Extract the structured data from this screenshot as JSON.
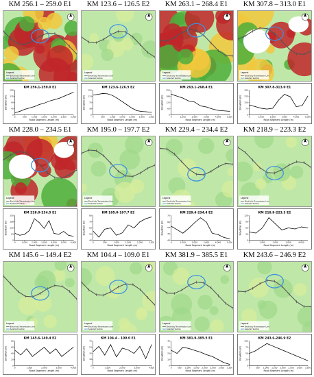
{
  "colors": {
    "route": "#555555",
    "route_ticks": "#555555",
    "study_area": "#3d8fe0",
    "low_elev": "#bfe8a8",
    "mid_elev": "#f1c83c",
    "high_elev": "#c0262a",
    "peak": "#ffffff",
    "profile_line": "#000000"
  },
  "map_common": {
    "compass": "north-arrow-icon",
    "legend_title": "Legend",
    "legend_items": [
      "Electricity Transmission Line",
      "Selected Section"
    ]
  },
  "panels": [
    {
      "title": "KM 256.1 – 259.0 E1",
      "map_style": "high",
      "chart_data": {
        "type": "line",
        "title": "KM 256.1-259.0 E1",
        "xlabel": "Road Segment Length (m)",
        "ylabel": "Elevation (m)",
        "xlim": [
          0,
          3000
        ],
        "ylim": [
          0,
          180
        ],
        "x_ticks": [
          0,
          500,
          1000,
          1500,
          2000,
          2500,
          3000
        ],
        "x": [
          0,
          250,
          500,
          750,
          1000,
          1250,
          1500,
          1750,
          2000,
          2250,
          2500,
          2750,
          3000
        ],
        "y": [
          15,
          25,
          40,
          50,
          60,
          75,
          85,
          100,
          110,
          120,
          135,
          150,
          165
        ]
      }
    },
    {
      "title": "KM 123.6 – 126.5 E2",
      "map_style": "light",
      "chart_data": {
        "type": "line",
        "title": "KM 123.6-126.5 E2",
        "xlabel": "Road Segment Length (m)",
        "ylabel": "Elevation (m)",
        "xlim": [
          0,
          3000
        ],
        "ylim": [
          0,
          150
        ],
        "x_ticks": [
          0,
          500,
          1000,
          1500,
          2000,
          2500,
          3000
        ],
        "x": [
          0,
          250,
          500,
          750,
          1000,
          1250,
          1500,
          1750,
          2000,
          2250,
          2500,
          2750,
          3000
        ],
        "y": [
          120,
          125,
          130,
          128,
          118,
          100,
          80,
          60,
          40,
          25,
          20,
          18,
          15
        ]
      }
    },
    {
      "title": "KM 263.1 – 268.4 E1",
      "map_style": "high",
      "chart_data": {
        "type": "line",
        "title": "KM 263.1-268.4 E1",
        "xlabel": "Road Segment Length (m)",
        "ylabel": "Elevation (m)",
        "xlim": [
          0,
          5000
        ],
        "ylim": [
          0,
          250
        ],
        "x_ticks": [
          0,
          1000,
          2000,
          3000,
          4000,
          5000
        ],
        "x": [
          0,
          500,
          1000,
          1500,
          2000,
          2500,
          3000,
          3500,
          4000,
          4500,
          5000
        ],
        "y": [
          210,
          190,
          170,
          140,
          130,
          90,
          80,
          60,
          45,
          40,
          35
        ]
      }
    },
    {
      "title": "KM 307.8 – 313.0 E1",
      "map_style": "peak",
      "chart_data": {
        "type": "line",
        "title": "KM 307.8-313.0 E1",
        "xlabel": "Road Segment Length (m)",
        "ylabel": "Elevation (m)",
        "xlim": [
          0,
          5000
        ],
        "ylim": [
          0,
          300
        ],
        "x_ticks": [
          0,
          1000,
          2000,
          3000,
          4000,
          5000
        ],
        "x": [
          0,
          500,
          1000,
          1500,
          2000,
          2500,
          3000,
          3500,
          4000,
          4500,
          5000
        ],
        "y": [
          120,
          100,
          80,
          70,
          80,
          180,
          250,
          220,
          100,
          110,
          230
        ]
      }
    },
    {
      "title": "KM 228.0 – 234.5 E1",
      "map_style": "peak",
      "chart_data": {
        "type": "line",
        "title": "KM 228.0-234.5 E1",
        "xlabel": "Road Segment Length (m)",
        "ylabel": "Elevation (m)",
        "xlim": [
          0,
          6000
        ],
        "ylim": [
          0,
          250
        ],
        "x_ticks": [
          0,
          1000,
          2000,
          3000,
          4000,
          5000,
          6000
        ],
        "x": [
          0,
          500,
          1000,
          1500,
          2000,
          2500,
          3000,
          3500,
          4000,
          4500,
          5000,
          5500,
          6000
        ],
        "y": [
          70,
          50,
          60,
          100,
          220,
          180,
          120,
          200,
          70,
          60,
          90,
          50,
          40
        ]
      }
    },
    {
      "title": "KM 195.0 – 197.7 E2",
      "map_style": "light",
      "chart_data": {
        "type": "line",
        "title": "KM 195.0-197.7 E2",
        "xlabel": "Road Segment Length (m)",
        "ylabel": "Elevation (m)",
        "xlim": [
          0,
          2500
        ],
        "ylim": [
          40,
          80
        ],
        "x_ticks": [
          0,
          500,
          1000,
          1500,
          2000,
          2500
        ],
        "x": [
          0,
          250,
          500,
          750,
          1000,
          1250,
          1500,
          1750,
          2000,
          2250,
          2500
        ],
        "y": [
          55,
          45,
          58,
          60,
          48,
          52,
          65,
          60,
          70,
          75,
          78
        ]
      }
    },
    {
      "title": "KM 229.4 – 234.4 E2",
      "map_style": "light",
      "chart_data": {
        "type": "line",
        "title": "KM 229.4-234.4 E2",
        "xlabel": "Road Segment Length (m)",
        "ylabel": "Elevation (m)",
        "xlim": [
          0,
          5000
        ],
        "ylim": [
          40,
          75
        ],
        "x_ticks": [
          0,
          1000,
          2000,
          3000,
          4000,
          5000
        ],
        "x": [
          0,
          500,
          1000,
          1500,
          2000,
          2500,
          3000,
          3500,
          4000,
          4500,
          5000
        ],
        "y": [
          60,
          55,
          50,
          57,
          65,
          72,
          66,
          50,
          48,
          44,
          42
        ]
      }
    },
    {
      "title": "KM 218.9 – 223.3 E2",
      "map_style": "light",
      "chart_data": {
        "type": "line",
        "title": "KM 218.9-223.3 E2",
        "xlabel": "Road Segment Length (m)",
        "ylabel": "Elevation (m)",
        "xlim": [
          0,
          4500
        ],
        "ylim": [
          0,
          120
        ],
        "x_ticks": [
          0,
          1000,
          2000,
          3000,
          4000
        ],
        "x": [
          0,
          500,
          1000,
          1500,
          2000,
          2500,
          3000,
          3500,
          4000,
          4500
        ],
        "y": [
          40,
          35,
          60,
          110,
          80,
          50,
          60,
          55,
          65,
          60
        ]
      }
    },
    {
      "title": "KM 145.6 – 149.4 E2",
      "map_style": "light",
      "chart_data": {
        "type": "line",
        "title": "KM 145.6-149.4 E2",
        "xlabel": "Road Segment Length (m)",
        "ylabel": "Elevation (m)",
        "xlim": [
          0,
          4000
        ],
        "ylim": [
          0,
          80
        ],
        "x_ticks": [
          0,
          1000,
          2000,
          3000,
          4000
        ],
        "x": [
          0,
          400,
          800,
          1200,
          1600,
          2000,
          2400,
          2800,
          3200,
          3600,
          4000
        ],
        "y": [
          50,
          35,
          55,
          30,
          45,
          60,
          40,
          55,
          30,
          45,
          60
        ]
      }
    },
    {
      "title": "KM 104.4 – 109.0 E1",
      "map_style": "light",
      "chart_data": {
        "type": "line",
        "title": "KM 104.4 - 109.0 E1",
        "xlabel": "Road Segment Length (m)",
        "ylabel": "Elevation (m)",
        "xlim": [
          0,
          4000
        ],
        "ylim": [
          0,
          70
        ],
        "x_ticks": [
          0,
          1000,
          2000,
          3000,
          4000
        ],
        "x": [
          0,
          400,
          800,
          1200,
          1600,
          2000,
          2400,
          2800,
          3200,
          3600,
          4000
        ],
        "y": [
          40,
          55,
          30,
          60,
          25,
          50,
          45,
          35,
          55,
          20,
          60
        ]
      }
    },
    {
      "title": "KM 381.9 – 385.5 E1",
      "map_style": "light",
      "chart_data": {
        "type": "line",
        "title": "KM 381.9-385.5 E1",
        "xlabel": "Road Segment Length (m)",
        "ylabel": "Elevation (m)",
        "xlim": [
          0,
          3500
        ],
        "ylim": [
          0,
          40
        ],
        "x_ticks": [
          0,
          500,
          1000,
          1500,
          2000,
          2500,
          3000,
          3500
        ],
        "x": [
          0,
          350,
          700,
          1050,
          1400,
          1750,
          2100,
          2450,
          2800,
          3150,
          3500
        ],
        "y": [
          25,
          20,
          30,
          28,
          25,
          22,
          18,
          15,
          10,
          5,
          2
        ]
      }
    },
    {
      "title": "KM 243.6 – 246.9 E2",
      "map_style": "light",
      "chart_data": {
        "type": "line",
        "title": "KM 243.6-246.9 E2",
        "xlabel": "Road Segment Length (m)",
        "ylabel": "Elevation (m)",
        "xlim": [
          0,
          3500
        ],
        "ylim": [
          0,
          100
        ],
        "x_ticks": [
          0,
          500,
          1000,
          1500,
          2000,
          2500,
          3000,
          3500
        ],
        "x": [
          0,
          350,
          700,
          1050,
          1400,
          1750,
          2100,
          2450,
          2800,
          3150,
          3500
        ],
        "y": [
          50,
          60,
          75,
          90,
          80,
          70,
          60,
          50,
          40,
          30,
          20
        ]
      }
    }
  ]
}
